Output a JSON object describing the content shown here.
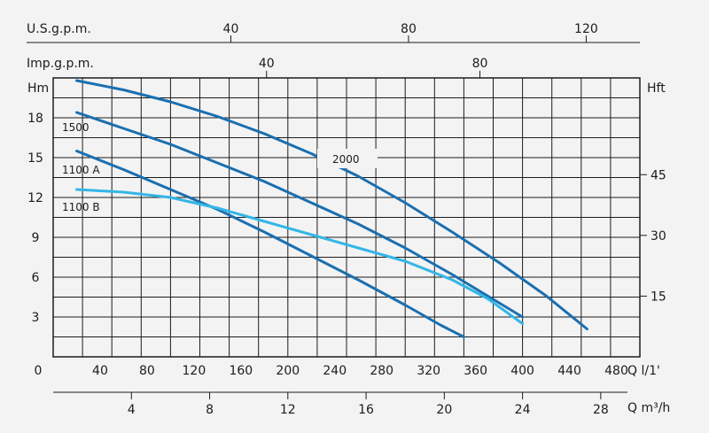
{
  "chart_data": {
    "type": "line",
    "colors": {
      "dark_blue": "#1a6fb0",
      "light_blue": "#33b6e6",
      "background": "#f3f3f3",
      "grid": "#1c1c1c"
    },
    "grid": true,
    "axes": {
      "us_gpm": {
        "label": "U.S.g.p.m.",
        "ticks": [
          "40",
          "80",
          "120"
        ]
      },
      "imp_gpm": {
        "label": "Imp.g.p.m.",
        "ticks": [
          "40",
          "80"
        ]
      },
      "q_lmin": {
        "label": "Q l/1'",
        "range": [
          0,
          500
        ],
        "ticks": [
          "0",
          "40",
          "80",
          "120",
          "160",
          "200",
          "240",
          "280",
          "320",
          "360",
          "400",
          "440",
          "480"
        ]
      },
      "q_m3h": {
        "label": "Q m³/h",
        "ticks": [
          "4",
          "8",
          "12",
          "16",
          "20",
          "24",
          "28"
        ]
      },
      "hm": {
        "label": "Hm",
        "range": [
          0,
          21
        ],
        "ticks": [
          "3",
          "6",
          "9",
          "12",
          "15",
          "18"
        ]
      },
      "hft": {
        "label": "Hft",
        "ticks": [
          "15",
          "30",
          "45"
        ]
      }
    },
    "series": [
      {
        "name": "2000",
        "color": "#1a6fb0",
        "x": [
          20,
          60,
          100,
          140,
          180,
          220,
          260,
          300,
          340,
          380,
          420,
          455
        ],
        "y": [
          20.8,
          20.1,
          19.2,
          18.1,
          16.8,
          15.3,
          13.6,
          11.6,
          9.4,
          7.1,
          4.6,
          2.1
        ]
      },
      {
        "name": "1500",
        "color": "#1a6fb0",
        "x": [
          20,
          60,
          100,
          140,
          180,
          220,
          260,
          300,
          340,
          370,
          400
        ],
        "y": [
          18.4,
          17.2,
          16.0,
          14.6,
          13.2,
          11.6,
          10.0,
          8.2,
          6.2,
          4.6,
          3.0
        ]
      },
      {
        "name": "1100 A",
        "color": "#1a6fb0",
        "x": [
          20,
          60,
          100,
          140,
          180,
          220,
          260,
          300,
          330,
          350
        ],
        "y": [
          15.5,
          14.1,
          12.6,
          11.1,
          9.4,
          7.6,
          5.8,
          3.9,
          2.4,
          1.5
        ]
      },
      {
        "name": "1100 B",
        "color": "#33b6e6",
        "x": [
          20,
          60,
          100,
          140,
          180,
          220,
          260,
          300,
          340,
          370,
          400
        ],
        "y": [
          12.6,
          12.4,
          12.0,
          11.2,
          10.2,
          9.2,
          8.2,
          7.2,
          5.8,
          4.4,
          2.5
        ]
      }
    ],
    "annotations": [
      "1500",
      "1100 A",
      "1100 B",
      "2000"
    ]
  }
}
